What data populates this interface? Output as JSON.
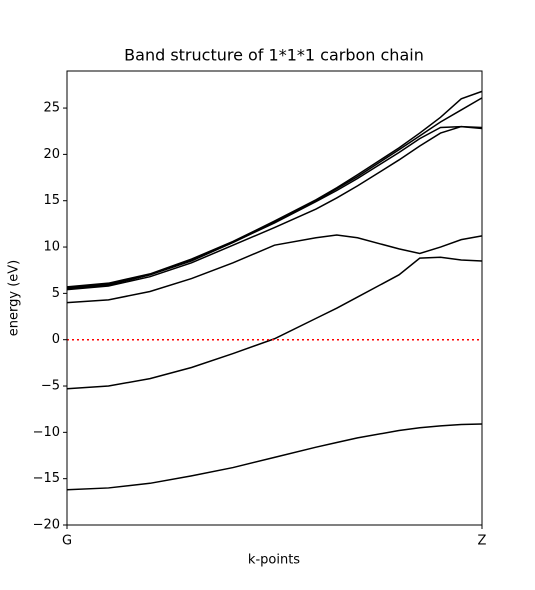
{
  "chart_data": {
    "type": "line",
    "title": "Band structure of 1*1*1 carbon chain",
    "xlabel": "k-points",
    "ylabel": "energy (eV)",
    "x": [
      0,
      0.1,
      0.2,
      0.3,
      0.4,
      0.5,
      0.6,
      0.65,
      0.7,
      0.8,
      0.85,
      0.9,
      0.95,
      1
    ],
    "series": [
      {
        "color": "#000000",
        "values": [
          -16.2,
          -16.0,
          -15.5,
          -14.7,
          -13.8,
          -12.7,
          -11.6,
          -11.1,
          -10.6,
          -9.8,
          -9.5,
          -9.3,
          -9.15,
          -9.1
        ]
      },
      {
        "color": "#000000",
        "values": [
          -5.3,
          -5.0,
          -4.2,
          -3.0,
          -1.5,
          0.1,
          2.3,
          3.4,
          4.6,
          7.0,
          8.8,
          8.9,
          8.6,
          8.5
        ]
      },
      {
        "color": "#000000",
        "values": [
          4.0,
          4.3,
          5.2,
          6.6,
          8.3,
          10.2,
          11.0,
          11.3,
          11.0,
          9.8,
          9.3,
          10.0,
          10.8,
          11.2
        ]
      },
      {
        "color": "#000000",
        "values": [
          5.4,
          5.8,
          6.8,
          8.3,
          10.2,
          12.1,
          14.1,
          15.3,
          16.6,
          19.4,
          20.9,
          22.3,
          23.0,
          22.8
        ]
      },
      {
        "color": "#000000",
        "values": [
          5.5,
          5.9,
          7.0,
          8.5,
          10.5,
          12.6,
          14.9,
          16.1,
          17.4,
          20.2,
          21.7,
          22.9,
          23.0,
          22.9
        ]
      },
      {
        "color": "#000000",
        "values": [
          5.6,
          6.0,
          7.0,
          8.6,
          10.5,
          12.7,
          15.0,
          16.3,
          17.6,
          20.5,
          22.0,
          23.5,
          24.8,
          26.1
        ]
      },
      {
        "color": "#000000",
        "values": [
          5.7,
          6.1,
          7.1,
          8.7,
          10.6,
          12.8,
          15.1,
          16.4,
          17.8,
          20.7,
          22.3,
          24.0,
          26.0,
          26.8
        ]
      }
    ],
    "xlim": [
      0,
      1
    ],
    "xticks": [
      {
        "value": 0,
        "label": "G"
      },
      {
        "value": 1,
        "label": "Z"
      }
    ],
    "ylim": [
      -20,
      29
    ],
    "yticks": [
      {
        "value": -20,
        "label": "−20"
      },
      {
        "value": -15,
        "label": "−15"
      },
      {
        "value": -10,
        "label": "−10"
      },
      {
        "value": -5,
        "label": "−5"
      },
      0,
      5,
      10,
      15,
      20,
      25
    ],
    "hlines": [
      {
        "value": 0,
        "color": "#ff0000",
        "style": "dotted"
      }
    ],
    "vlines": [
      {
        "value": 1,
        "color": "#000000",
        "style": "dashed"
      }
    ]
  }
}
